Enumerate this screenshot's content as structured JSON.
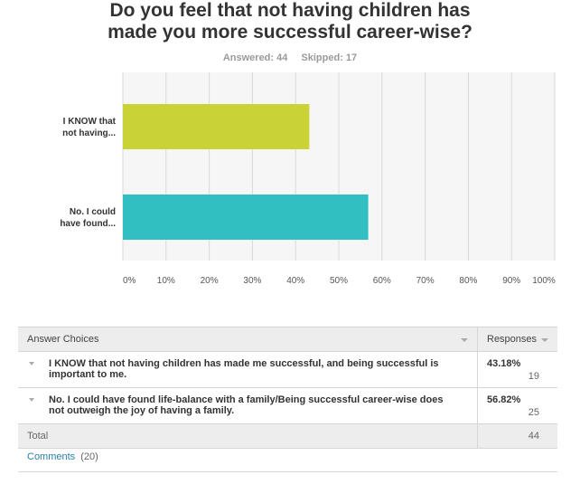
{
  "question": {
    "title_line1": "Do you feel that not having children has",
    "title_line2": "made you more successful career-wise?",
    "answered_label": "Answered: 44",
    "skipped_label": "Skipped: 17"
  },
  "chart_data": {
    "type": "bar",
    "orientation": "horizontal",
    "categories": [
      "I KNOW that not having...",
      "No. I could have found..."
    ],
    "category_label_lines": [
      [
        "I KNOW that",
        "not having..."
      ],
      [
        "No. I could",
        "have found..."
      ]
    ],
    "values": [
      43.18,
      56.82
    ],
    "colors": [
      "#c9d336",
      "#31bfc1"
    ],
    "xlim": [
      0,
      100
    ],
    "xticks": [
      "0%",
      "10%",
      "20%",
      "30%",
      "40%",
      "50%",
      "60%",
      "70%",
      "80%",
      "90%",
      "100%"
    ],
    "grid": true
  },
  "table": {
    "col_answer": "Answer Choices",
    "col_responses": "Responses",
    "rows": [
      {
        "answer": "I KNOW that not having children has made me successful, and being successful is important to me.",
        "percent": "43.18%",
        "count": "19"
      },
      {
        "answer": "No. I could have found life-balance with a family/Being successful career-wise does not outweigh the joy of having a family.",
        "percent": "56.82%",
        "count": "25"
      }
    ],
    "total_label": "Total",
    "total_value": "44"
  },
  "comments": {
    "label": "Comments",
    "count": "(20)"
  }
}
